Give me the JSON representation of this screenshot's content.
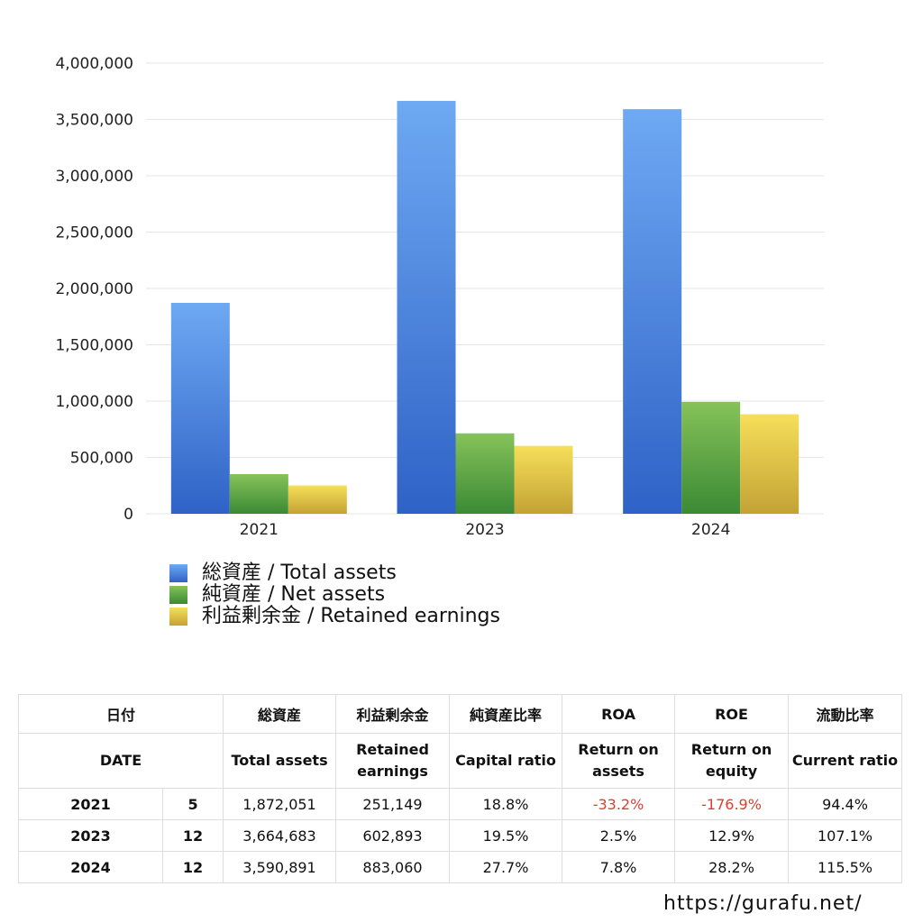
{
  "chart_data": {
    "type": "bar",
    "categories": [
      "2021",
      "2023",
      "2024"
    ],
    "series": [
      {
        "name": "総資産 / Total assets",
        "values": [
          1872051,
          3664683,
          3590891
        ],
        "color_top": "#6ea9f3",
        "color_bottom": "#2f62c6"
      },
      {
        "name": "純資産 / Net assets",
        "values": [
          352000,
          714000,
          993000
        ],
        "color_top": "#86c25a",
        "color_bottom": "#3b8a34"
      },
      {
        "name": "利益剰余金 / Retained earnings",
        "values": [
          251149,
          602893,
          883060
        ],
        "color_top": "#f6df59",
        "color_bottom": "#c3a235"
      }
    ],
    "ylim": [
      0,
      4000000
    ],
    "yticks": [
      0,
      500000,
      1000000,
      1500000,
      2000000,
      2500000,
      3000000,
      3500000,
      4000000
    ],
    "ytick_labels": [
      "0",
      "500,000",
      "1,000,000",
      "1,500,000",
      "2,000,000",
      "2,500,000",
      "3,000,000",
      "3,500,000",
      "4,000,000"
    ],
    "grid": true,
    "legend_position": "bottom-left"
  },
  "legend": [
    {
      "label": "総資産 / Total assets"
    },
    {
      "label": "純資産 / Net assets"
    },
    {
      "label": "利益剰余金 / Retained earnings"
    }
  ],
  "table": {
    "header_jp": {
      "date": "日付",
      "total": "総資産",
      "retained": "利益剰余金",
      "capital": "純資産比率",
      "roa": "ROA",
      "roe": "ROE",
      "current": "流動比率"
    },
    "header_en": {
      "date": "DATE",
      "total": "Total assets",
      "retained": "Retained\nearnings",
      "capital": "Capital ratio",
      "roa": "Return on\nassets",
      "roe": "Return on\nequity",
      "current": "Current ratio"
    },
    "rows": [
      {
        "year": "2021",
        "month": "5",
        "total": "1,872,051",
        "retained": "251,149",
        "capital": "18.8%",
        "roa": "-33.2%",
        "roe": "-176.9%",
        "current": "94.4%"
      },
      {
        "year": "2023",
        "month": "12",
        "total": "3,664,683",
        "retained": "602,893",
        "capital": "19.5%",
        "roa": "2.5%",
        "roe": "12.9%",
        "current": "107.1%"
      },
      {
        "year": "2024",
        "month": "12",
        "total": "3,590,891",
        "retained": "883,060",
        "capital": "27.7%",
        "roa": "7.8%",
        "roe": "28.2%",
        "current": "115.5%"
      }
    ],
    "negative_color": "#d8412f"
  },
  "footer": {
    "url": "https://gurafu.net/"
  }
}
